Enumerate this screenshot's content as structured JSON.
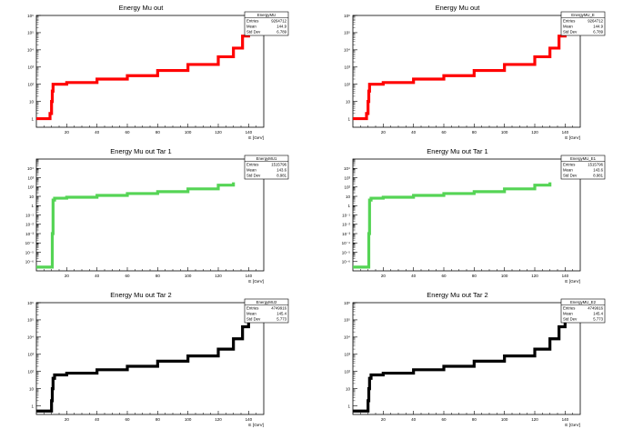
{
  "chart_data": [
    {
      "type": "line",
      "title": "Energy Mu out",
      "xlabel": "E [GeV]",
      "ylabel": "",
      "log_y": true,
      "xlim": [
        0,
        150
      ],
      "ylim_exponent": [
        -0.5,
        6
      ],
      "xticks": [
        "20",
        "40",
        "60",
        "80",
        "100",
        "120",
        "140"
      ],
      "yticks": [
        "1",
        "10",
        "10²",
        "10³",
        "10⁴",
        "10⁵",
        "10⁶"
      ],
      "color": "#ff0000",
      "stats": {
        "name": "EnergyMU",
        "entries": "9264712",
        "mean": "144.9",
        "std": "6.789"
      },
      "stats_labels": [
        "Entries",
        "Mean",
        "Std Dev"
      ],
      "series": [
        {
          "x": [
            0,
            8,
            9,
            10,
            10.5,
            11,
            20,
            40,
            60,
            80,
            100,
            120,
            130,
            136,
            140
          ],
          "log10_y": [
            0,
            0,
            0.3,
            1.0,
            1.6,
            2.0,
            2.1,
            2.3,
            2.5,
            2.8,
            3.15,
            3.6,
            4.1,
            4.8,
            5.5
          ]
        }
      ]
    },
    {
      "type": "line",
      "title": "Energy Mu out",
      "xlabel": "E [GeV]",
      "ylabel": "",
      "log_y": true,
      "xlim": [
        0,
        150
      ],
      "ylim_exponent": [
        -0.5,
        6
      ],
      "xticks": [
        "20",
        "40",
        "60",
        "80",
        "100",
        "120",
        "140"
      ],
      "yticks": [
        "1",
        "10",
        "10²",
        "10³",
        "10⁴",
        "10⁵",
        "10⁶"
      ],
      "color": "#ff0000",
      "stats": {
        "name": "EnergyMU_E",
        "entries": "9264712",
        "mean": "144.9",
        "std": "6.789"
      },
      "stats_labels": [
        "Entries",
        "Mean",
        "Std Dev"
      ],
      "series": [
        {
          "x": [
            0,
            8,
            9,
            10,
            10.5,
            11,
            20,
            40,
            60,
            80,
            100,
            120,
            130,
            136,
            140
          ],
          "log10_y": [
            0,
            0,
            0.3,
            1.0,
            1.6,
            2.0,
            2.1,
            2.3,
            2.5,
            2.8,
            3.15,
            3.6,
            4.1,
            4.8,
            5.5
          ]
        }
      ]
    },
    {
      "type": "line",
      "title": "Energy Mu out Tar 1",
      "xlabel": "E [GeV]",
      "ylabel": "",
      "log_y": true,
      "xlim": [
        0,
        150
      ],
      "ylim_exponent": [
        -7,
        5
      ],
      "xticks": [
        "20",
        "40",
        "60",
        "80",
        "100",
        "120",
        "140"
      ],
      "yticks": [
        "10⁻⁶",
        "10⁻⁵",
        "10⁻⁴",
        "10⁻³",
        "10⁻²",
        "10⁻¹",
        "1",
        "10",
        "10²",
        "10³",
        "10⁴"
      ],
      "color": "#55d455",
      "stats": {
        "name": "EnergyMU1",
        "entries": "1515796",
        "mean": "143.6",
        "std": "8.981"
      },
      "stats_labels": [
        "Entries",
        "Mean",
        "Std Dev"
      ],
      "series": [
        {
          "x": [
            0,
            9,
            10,
            10.5,
            11,
            12,
            20,
            40,
            60,
            80,
            100,
            120,
            130
          ],
          "log10_y": [
            -6.6,
            -6.6,
            -6.6,
            -3,
            0.6,
            0.8,
            0.9,
            1.1,
            1.3,
            1.5,
            1.8,
            2.2,
            2.5
          ]
        }
      ]
    },
    {
      "type": "line",
      "title": "Energy Mu out Tar 1",
      "xlabel": "E [GeV]",
      "ylabel": "",
      "log_y": true,
      "xlim": [
        0,
        150
      ],
      "ylim_exponent": [
        -7,
        5
      ],
      "xticks": [
        "20",
        "40",
        "60",
        "80",
        "100",
        "120",
        "140"
      ],
      "yticks": [
        "10⁻⁶",
        "10⁻⁵",
        "10⁻⁴",
        "10⁻³",
        "10⁻²",
        "10⁻¹",
        "1",
        "10",
        "10²",
        "10³",
        "10⁴"
      ],
      "color": "#55d455",
      "stats": {
        "name": "EnergyMU_E1",
        "entries": "1515796",
        "mean": "143.6",
        "std": "8.981"
      },
      "stats_labels": [
        "Entries",
        "Mean",
        "Std Dev"
      ],
      "series": [
        {
          "x": [
            0,
            9,
            10,
            10.5,
            11,
            12,
            20,
            40,
            60,
            80,
            100,
            120,
            130
          ],
          "log10_y": [
            -6.6,
            -6.6,
            -6.6,
            -3,
            0.6,
            0.8,
            0.9,
            1.1,
            1.3,
            1.5,
            1.8,
            2.2,
            2.5
          ]
        }
      ]
    },
    {
      "type": "line",
      "title": "Energy Mu out Tar 2",
      "xlabel": "E [GeV]",
      "ylabel": "",
      "log_y": true,
      "xlim": [
        0,
        150
      ],
      "ylim_exponent": [
        -0.5,
        6
      ],
      "xticks": [
        "20",
        "40",
        "60",
        "80",
        "100",
        "120",
        "140"
      ],
      "yticks": [
        "1",
        "10",
        "10²",
        "10³",
        "10⁴",
        "10⁵",
        "10⁶"
      ],
      "color": "#000000",
      "stats": {
        "name": "EnergyMU2",
        "entries": "4749916",
        "mean": "145.4",
        "std": "5.773"
      },
      "stats_labels": [
        "Entries",
        "Mean",
        "Std Dev"
      ],
      "series": [
        {
          "x": [
            0,
            9,
            10,
            10.5,
            11,
            12,
            20,
            40,
            60,
            80,
            100,
            120,
            130,
            136,
            140
          ],
          "log10_y": [
            -0.3,
            -0.3,
            0.3,
            1.0,
            1.6,
            1.8,
            1.9,
            2.1,
            2.3,
            2.6,
            2.9,
            3.3,
            3.9,
            4.6,
            5.4
          ]
        }
      ]
    },
    {
      "type": "line",
      "title": "Energy Mu out Tar 2",
      "xlabel": "E [GeV]",
      "ylabel": "",
      "log_y": true,
      "xlim": [
        0,
        150
      ],
      "ylim_exponent": [
        -0.5,
        6
      ],
      "xticks": [
        "20",
        "40",
        "60",
        "80",
        "100",
        "120",
        "140"
      ],
      "yticks": [
        "1",
        "10",
        "10²",
        "10³",
        "10⁴",
        "10⁵",
        "10⁶"
      ],
      "color": "#000000",
      "stats": {
        "name": "EnergyMU_E2",
        "entries": "4749916",
        "mean": "145.4",
        "std": "5.773"
      },
      "stats_labels": [
        "Entries",
        "Mean",
        "Std Dev"
      ],
      "series": [
        {
          "x": [
            0,
            9,
            10,
            10.5,
            11,
            12,
            20,
            40,
            60,
            80,
            100,
            120,
            130,
            136,
            140
          ],
          "log10_y": [
            -0.3,
            -0.3,
            0.3,
            1.0,
            1.6,
            1.8,
            1.9,
            2.1,
            2.3,
            2.6,
            2.9,
            3.3,
            3.9,
            4.6,
            5.4
          ]
        }
      ]
    }
  ]
}
